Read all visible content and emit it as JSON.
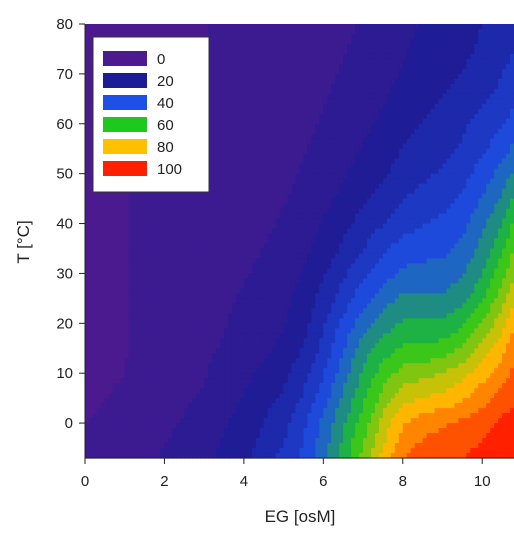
{
  "chart_data": {
    "type": "heatmap",
    "xlabel": "EG [osM]",
    "ylabel": "T [°C]",
    "xlim": [
      0,
      10.8
    ],
    "ylim": [
      -7,
      80
    ],
    "x_ticks": [
      "0",
      "2",
      "4",
      "6",
      "8",
      "10"
    ],
    "y_ticks": [
      "0",
      "10",
      "20",
      "30",
      "40",
      "50",
      "60",
      "70",
      "80"
    ],
    "legend": {
      "placement": "top-left",
      "entries": [
        {
          "label": "0",
          "color": "#4a1a8e"
        },
        {
          "label": "20",
          "color": "#1c1c96"
        },
        {
          "label": "40",
          "color": "#1e50e6"
        },
        {
          "label": "60",
          "color": "#1ec81e"
        },
        {
          "label": "80",
          "color": "#ffc000"
        },
        {
          "label": "100",
          "color": "#ff2000"
        }
      ]
    },
    "levels": [
      0,
      20,
      40,
      60,
      80,
      100
    ],
    "x": [
      0,
      1,
      2,
      3,
      4,
      5,
      5.5,
      6,
      6.5,
      7,
      7.5,
      8,
      8.5,
      9,
      9.5,
      10,
      10.5,
      10.8
    ],
    "y": [
      -7,
      0,
      5,
      10,
      15,
      20,
      25,
      30,
      35,
      40,
      45,
      50,
      55,
      60,
      65,
      70,
      75,
      80
    ],
    "z": [
      [
        4,
        6,
        10,
        14,
        20,
        30,
        36,
        45,
        56,
        68,
        80,
        90,
        94,
        95,
        97,
        99,
        100,
        100
      ],
      [
        3,
        5,
        8,
        12,
        18,
        26,
        33,
        42,
        52,
        62,
        74,
        84,
        88,
        90,
        92,
        95,
        98,
        100
      ],
      [
        2,
        4,
        7,
        10,
        16,
        23,
        29,
        38,
        48,
        58,
        68,
        76,
        78,
        80,
        83,
        88,
        93,
        96
      ],
      [
        2,
        3,
        6,
        9,
        14,
        20,
        26,
        34,
        44,
        54,
        62,
        68,
        70,
        72,
        76,
        82,
        88,
        92
      ],
      [
        2,
        3,
        5,
        8,
        12,
        17,
        22,
        30,
        40,
        50,
        56,
        60,
        60,
        62,
        66,
        74,
        82,
        88
      ],
      [
        2,
        3,
        5,
        7,
        11,
        15,
        20,
        27,
        36,
        44,
        50,
        54,
        54,
        54,
        58,
        66,
        76,
        83
      ],
      [
        2,
        3,
        4,
        7,
        10,
        14,
        18,
        24,
        31,
        38,
        44,
        48,
        48,
        48,
        51,
        58,
        69,
        77
      ],
      [
        2,
        3,
        4,
        6,
        9,
        12,
        16,
        21,
        27,
        33,
        38,
        42,
        43,
        43,
        46,
        53,
        63,
        71
      ],
      [
        2,
        3,
        4,
        6,
        8,
        11,
        14,
        18,
        23,
        28,
        33,
        37,
        38,
        39,
        42,
        49,
        58,
        66
      ],
      [
        2,
        3,
        4,
        5,
        7,
        10,
        12,
        16,
        20,
        24,
        28,
        32,
        34,
        36,
        39,
        45,
        53,
        60
      ],
      [
        2,
        3,
        4,
        5,
        7,
        9,
        11,
        14,
        17,
        21,
        24,
        28,
        30,
        32,
        35,
        41,
        48,
        54
      ],
      [
        2,
        3,
        4,
        5,
        6,
        8,
        10,
        12,
        15,
        18,
        21,
        24,
        27,
        29,
        32,
        37,
        43,
        48
      ],
      [
        2,
        3,
        3,
        4,
        6,
        7,
        9,
        11,
        13,
        16,
        19,
        22,
        24,
        26,
        29,
        33,
        38,
        42
      ],
      [
        2,
        2,
        3,
        4,
        5,
        7,
        8,
        10,
        12,
        14,
        17,
        20,
        22,
        24,
        27,
        30,
        34,
        37
      ],
      [
        2,
        2,
        3,
        4,
        5,
        6,
        7,
        9,
        11,
        13,
        15,
        18,
        20,
        22,
        24,
        27,
        30,
        33
      ],
      [
        1,
        2,
        3,
        3,
        4,
        5,
        6,
        8,
        10,
        12,
        14,
        16,
        18,
        20,
        22,
        25,
        28,
        30
      ],
      [
        1,
        2,
        2,
        3,
        4,
        5,
        6,
        7,
        9,
        11,
        13,
        15,
        17,
        18,
        20,
        23,
        26,
        28
      ],
      [
        1,
        2,
        2,
        3,
        4,
        5,
        6,
        7,
        8,
        10,
        12,
        14,
        16,
        17,
        19,
        22,
        25,
        27
      ]
    ]
  }
}
